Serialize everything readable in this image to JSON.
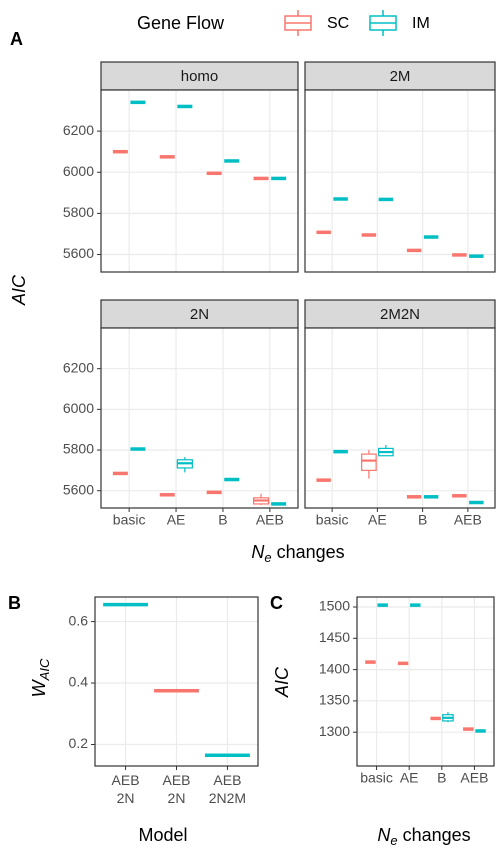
{
  "chart_data": [
    {
      "type": "boxplot",
      "label": "A",
      "legend_title": "Gene Flow",
      "y_label": "AIC",
      "x_label": [
        "N",
        "e",
        " changes"
      ],
      "categories": [
        "basic",
        "AE",
        "B",
        "AEB"
      ],
      "ylim": [
        5515,
        6400
      ],
      "yticks": [
        5600,
        5800,
        6000,
        6200
      ],
      "grid": true,
      "dodge": true,
      "facets": [
        {
          "title": "homo",
          "series": [
            {
              "name": "SC",
              "color": "#F8766D",
              "values": [
                6100,
                6075,
                5995,
                5970
              ],
              "low": [
                null,
                null,
                null,
                null
              ],
              "q1": [
                null,
                null,
                null,
                null
              ],
              "q3": [
                null,
                null,
                null,
                null
              ],
              "high": [
                null,
                null,
                null,
                null
              ]
            },
            {
              "name": "IM",
              "color": "#00BFC4",
              "values": [
                6340,
                6320,
                6055,
                5970
              ],
              "low": [
                null,
                null,
                null,
                null
              ],
              "q1": [
                null,
                null,
                null,
                null
              ],
              "q3": [
                null,
                null,
                null,
                null
              ],
              "high": [
                null,
                null,
                null,
                null
              ]
            }
          ]
        },
        {
          "title": "2M",
          "series": [
            {
              "name": "SC",
              "color": "#F8766D",
              "values": [
                5708,
                5695,
                5620,
                5598
              ],
              "low": [
                null,
                null,
                null,
                null
              ],
              "q1": [
                null,
                null,
                null,
                null
              ],
              "q3": [
                null,
                null,
                null,
                null
              ],
              "high": [
                null,
                null,
                null,
                null
              ]
            },
            {
              "name": "IM",
              "color": "#00BFC4",
              "values": [
                5870,
                5868,
                5685,
                5592
              ],
              "low": [
                null,
                null,
                null,
                null
              ],
              "q1": [
                null,
                null,
                null,
                null
              ],
              "q3": [
                null,
                null,
                null,
                null
              ],
              "high": [
                null,
                null,
                null,
                null
              ]
            }
          ]
        },
        {
          "title": "2N",
          "series": [
            {
              "name": "SC",
              "color": "#F8766D",
              "values": [
                5685,
                5580,
                5592,
                5552
              ],
              "low": [
                null,
                null,
                null,
                5530
              ],
              "q1": [
                null,
                null,
                null,
                5535
              ],
              "q3": [
                null,
                null,
                null,
                5565
              ],
              "high": [
                null,
                null,
                null,
                5585
              ]
            },
            {
              "name": "IM",
              "color": "#00BFC4",
              "values": [
                5805,
                5735,
                5655,
                5535
              ],
              "low": [
                null,
                5690,
                null,
                null
              ],
              "q1": [
                null,
                5712,
                null,
                null
              ],
              "q3": [
                null,
                5752,
                null,
                null
              ],
              "high": [
                null,
                5765,
                null,
                null
              ]
            }
          ]
        },
        {
          "title": "2M2N",
          "series": [
            {
              "name": "SC",
              "color": "#F8766D",
              "values": [
                5652,
                5748,
                5570,
                5575
              ],
              "low": [
                null,
                5660,
                null,
                null
              ],
              "q1": [
                null,
                5700,
                null,
                null
              ],
              "q3": [
                null,
                5780,
                null,
                null
              ],
              "high": [
                null,
                5800,
                null,
                null
              ]
            },
            {
              "name": "IM",
              "color": "#00BFC4",
              "values": [
                5792,
                5790,
                5570,
                5542
              ],
              "low": [
                null,
                5770,
                null,
                null
              ],
              "q1": [
                null,
                5772,
                null,
                null
              ],
              "q3": [
                null,
                5808,
                null,
                null
              ],
              "high": [
                null,
                5825,
                null,
                null
              ]
            }
          ]
        }
      ]
    },
    {
      "type": "boxplot",
      "label": "B",
      "y_label": [
        "W",
        "AIC"
      ],
      "x_label": "Model",
      "categories": [
        [
          "AEB",
          "2N"
        ],
        [
          "AEB",
          "2N"
        ],
        [
          "AEB",
          "2N2M"
        ]
      ],
      "ylim": [
        0.13,
        0.68
      ],
      "yticks": [
        0.2,
        0.4,
        0.6
      ],
      "grid": true,
      "dodge": false,
      "series": [
        {
          "name": "SC",
          "color": "#F8766D",
          "values": [
            null,
            0.375,
            null
          ],
          "low": [
            null,
            null,
            null
          ],
          "q1": [
            null,
            null,
            null
          ],
          "q3": [
            null,
            null,
            null
          ],
          "high": [
            null,
            null,
            null
          ]
        },
        {
          "name": "IM",
          "color": "#00BFC4",
          "values": [
            0.655,
            null,
            0.165
          ],
          "low": [
            null,
            null,
            null
          ],
          "q1": [
            null,
            null,
            null
          ],
          "q3": [
            null,
            null,
            null
          ],
          "high": [
            null,
            null,
            null
          ]
        }
      ]
    },
    {
      "type": "boxplot",
      "label": "C",
      "y_label": "AIC",
      "x_label": [
        "N",
        "e",
        " changes"
      ],
      "categories": [
        "basic",
        "AE",
        "B",
        "AEB"
      ],
      "ylim": [
        1246,
        1516
      ],
      "yticks": [
        1300,
        1350,
        1400,
        1450,
        1500
      ],
      "grid": true,
      "dodge": true,
      "series": [
        {
          "name": "SC",
          "color": "#F8766D",
          "values": [
            1412,
            1410,
            1322,
            1305
          ],
          "low": [
            null,
            null,
            null,
            null
          ],
          "q1": [
            null,
            null,
            null,
            null
          ],
          "q3": [
            null,
            null,
            null,
            null
          ],
          "high": [
            null,
            null,
            null,
            null
          ]
        },
        {
          "name": "IM",
          "color": "#00BFC4",
          "values": [
            1503,
            1503,
            1323,
            1302
          ],
          "low": [
            null,
            null,
            1316,
            null
          ],
          "q1": [
            null,
            null,
            1318,
            null
          ],
          "q3": [
            null,
            null,
            1328,
            null
          ],
          "high": [
            null,
            null,
            1332,
            null
          ]
        }
      ]
    }
  ]
}
